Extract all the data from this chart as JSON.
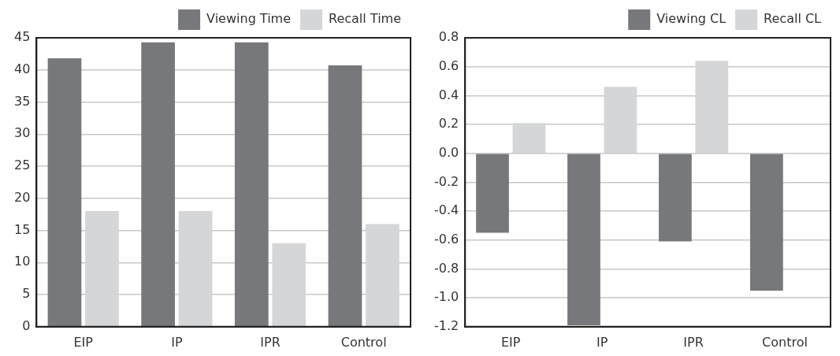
{
  "chart_data": [
    {
      "type": "bar",
      "categories": [
        "EIP",
        "IP",
        "IPR",
        "Control"
      ],
      "series": [
        {
          "name": "Viewing Time",
          "color": "#77787c",
          "values": [
            41.8,
            44.3,
            44.3,
            40.7
          ]
        },
        {
          "name": "Recall Time",
          "color": "#d5d6d8",
          "values": [
            18,
            18,
            13,
            16
          ]
        }
      ],
      "ylim": [
        0,
        45
      ],
      "yticks": [
        0,
        5,
        10,
        15,
        20,
        25,
        30,
        35,
        40,
        45
      ],
      "grid": "y",
      "legend": "top right"
    },
    {
      "type": "bar",
      "categories": [
        "EIP",
        "IP",
        "IPR",
        "Control"
      ],
      "series": [
        {
          "name": "Viewing CL",
          "color": "#77787c",
          "values": [
            -0.55,
            -1.19,
            -0.61,
            -0.95
          ]
        },
        {
          "name": "Recall CL",
          "color": "#d5d6d8",
          "values": [
            0.21,
            0.46,
            0.64,
            null
          ]
        }
      ],
      "ylim": [
        -1.2,
        0.8
      ],
      "yticks": [
        {
          "value": -1.2,
          "label": "-1.2"
        },
        {
          "value": -1,
          "label": "-1.0"
        },
        {
          "value": -0.8,
          "label": "-0.8"
        },
        {
          "value": -0.6,
          "label": "-0.6"
        },
        {
          "value": -0.4,
          "label": "-0.4"
        },
        {
          "value": -0.2,
          "label": "-0.2"
        },
        {
          "value": 0,
          "label": "0.0"
        },
        {
          "value": 0.2,
          "label": "0.2"
        },
        {
          "value": 0.4,
          "label": "0.4"
        },
        {
          "value": 0.6,
          "label": "0.6"
        },
        {
          "value": 0.8,
          "label": "0.8"
        }
      ],
      "grid": "y",
      "legend": "top right"
    }
  ]
}
